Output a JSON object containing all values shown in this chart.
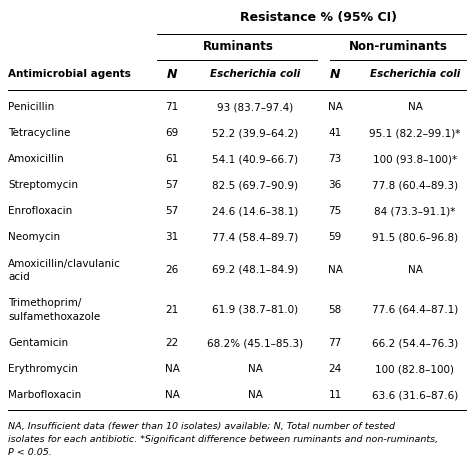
{
  "title": "Resistance % (95% CI)",
  "col_headers": [
    "Antimicrobial agents",
    "N",
    "Escherichia coli",
    "N",
    "Escherichia coli"
  ],
  "group_headers": [
    "Ruminants",
    "Non-ruminants"
  ],
  "rows": [
    [
      "Penicillin",
      "71",
      "93 (83.7–97.4)",
      "NA",
      "NA"
    ],
    [
      "Tetracycline",
      "69",
      "52.2 (39.9–64.2)",
      "41",
      "95.1 (82.2–99.1)*"
    ],
    [
      "Amoxicillin",
      "61",
      "54.1 (40.9–66.7)",
      "73",
      "100 (93.8–100)*"
    ],
    [
      "Streptomycin",
      "57",
      "82.5 (69.7–90.9)",
      "36",
      "77.8 (60.4–89.3)"
    ],
    [
      "Enrofloxacin",
      "57",
      "24.6 (14.6–38.1)",
      "75",
      "84 (73.3–91.1)*"
    ],
    [
      "Neomycin",
      "31",
      "77.4 (58.4–89.7)",
      "59",
      "91.5 (80.6–96.8)"
    ],
    [
      "Amoxicillin/clavulanic\nacid",
      "26",
      "69.2 (48.1–84.9)",
      "NA",
      "NA"
    ],
    [
      "Trimethoprim/\nsulfamethoxazole",
      "21",
      "61.9 (38.7–81.0)",
      "58",
      "77.6 (64.4–87.1)"
    ],
    [
      "Gentamicin",
      "22",
      "68.2% (45.1–85.3)",
      "77",
      "66.2 (54.4–76.3)"
    ],
    [
      "Erythromycin",
      "NA",
      "NA",
      "24",
      "100 (82.8–100)"
    ],
    [
      "Marbofloxacin",
      "NA",
      "NA",
      "11",
      "63.6 (31.6–87.6)"
    ]
  ],
  "footnote": "NA, Insufficient data (fewer than 10 isolates) available; N, Total number of tested\nisolates for each antibiotic. *Significant difference between ruminants and non-ruminants,\nP < 0.05.",
  "bg_color": "#ffffff",
  "text_color": "#000000"
}
